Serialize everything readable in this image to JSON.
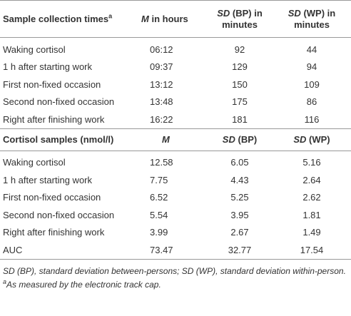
{
  "table": {
    "sections": [
      {
        "header": [
          {
            "text": "Sample collection times",
            "sup": "a"
          },
          {
            "em": "M",
            "text": "in hours"
          },
          {
            "em": "SD",
            "text": "(BP) in minutes"
          },
          {
            "em": "SD",
            "text": "(WP) in minutes"
          }
        ],
        "rows": [
          [
            "Waking cortisol",
            "06:12",
            "92",
            "44"
          ],
          [
            "1 h after starting work",
            "09:37",
            "129",
            "94"
          ],
          [
            "First non-fixed occasion",
            "13:12",
            "150",
            "109"
          ],
          [
            "Second non-fixed occasion",
            "13:48",
            "175",
            "86"
          ],
          [
            "Right after finishing work",
            "16:22",
            "181",
            "116"
          ]
        ]
      },
      {
        "header": [
          {
            "text": "Cortisol samples (nmol/l)"
          },
          {
            "em": "M"
          },
          {
            "em": "SD",
            "text": "(BP)"
          },
          {
            "em": "SD",
            "text": "(WP)"
          }
        ],
        "rows": [
          [
            "Waking cortisol",
            "12.58",
            "6.05",
            "5.16"
          ],
          [
            "1 h after starting work",
            "7.75",
            "4.43",
            "2.64"
          ],
          [
            "First non-fixed occasion",
            "6.52",
            "5.25",
            "2.62"
          ],
          [
            "Second non-fixed occasion",
            "5.54",
            "3.95",
            "1.81"
          ],
          [
            "Right after finishing work",
            "3.99",
            "2.67",
            "1.49"
          ],
          [
            "AUC",
            "73.47",
            "32.77",
            "17.54"
          ]
        ]
      }
    ]
  },
  "footnotes": [
    {
      "text": "SD (BP), standard deviation between-persons; SD (WP), standard deviation within-person."
    },
    {
      "sup": "a",
      "text": "As measured by the electronic track cap."
    }
  ]
}
